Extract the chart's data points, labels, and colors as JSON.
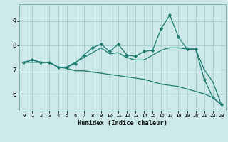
{
  "xlabel": "Humidex (Indice chaleur)",
  "bg_color": "#cce8e8",
  "grid_color": "#aad0d0",
  "line_color": "#1a7a6e",
  "xlim": [
    -0.5,
    23.5
  ],
  "ylim": [
    5.3,
    9.7
  ],
  "xticks": [
    0,
    1,
    2,
    3,
    4,
    5,
    6,
    7,
    8,
    9,
    10,
    11,
    12,
    13,
    14,
    15,
    16,
    17,
    18,
    19,
    20,
    21,
    22,
    23
  ],
  "yticks": [
    6,
    7,
    8,
    9
  ],
  "series": [
    [
      7.3,
      7.4,
      7.3,
      7.3,
      7.1,
      7.1,
      7.25,
      7.6,
      7.9,
      8.05,
      7.75,
      8.05,
      7.6,
      7.55,
      7.75,
      7.8,
      8.7,
      9.25,
      8.35,
      7.85,
      7.85,
      6.6,
      5.85,
      5.55
    ],
    [
      7.3,
      7.4,
      7.3,
      7.3,
      7.1,
      7.1,
      7.3,
      7.5,
      7.7,
      7.9,
      7.65,
      7.7,
      7.5,
      7.4,
      7.4,
      7.6,
      7.8,
      7.9,
      7.9,
      7.85,
      7.85,
      7.0,
      6.5,
      5.55
    ],
    [
      7.3,
      7.3,
      7.3,
      7.3,
      7.1,
      7.05,
      6.95,
      6.95,
      6.9,
      6.85,
      6.8,
      6.75,
      6.7,
      6.65,
      6.6,
      6.5,
      6.4,
      6.35,
      6.3,
      6.2,
      6.1,
      6.0,
      5.85,
      5.55
    ]
  ]
}
